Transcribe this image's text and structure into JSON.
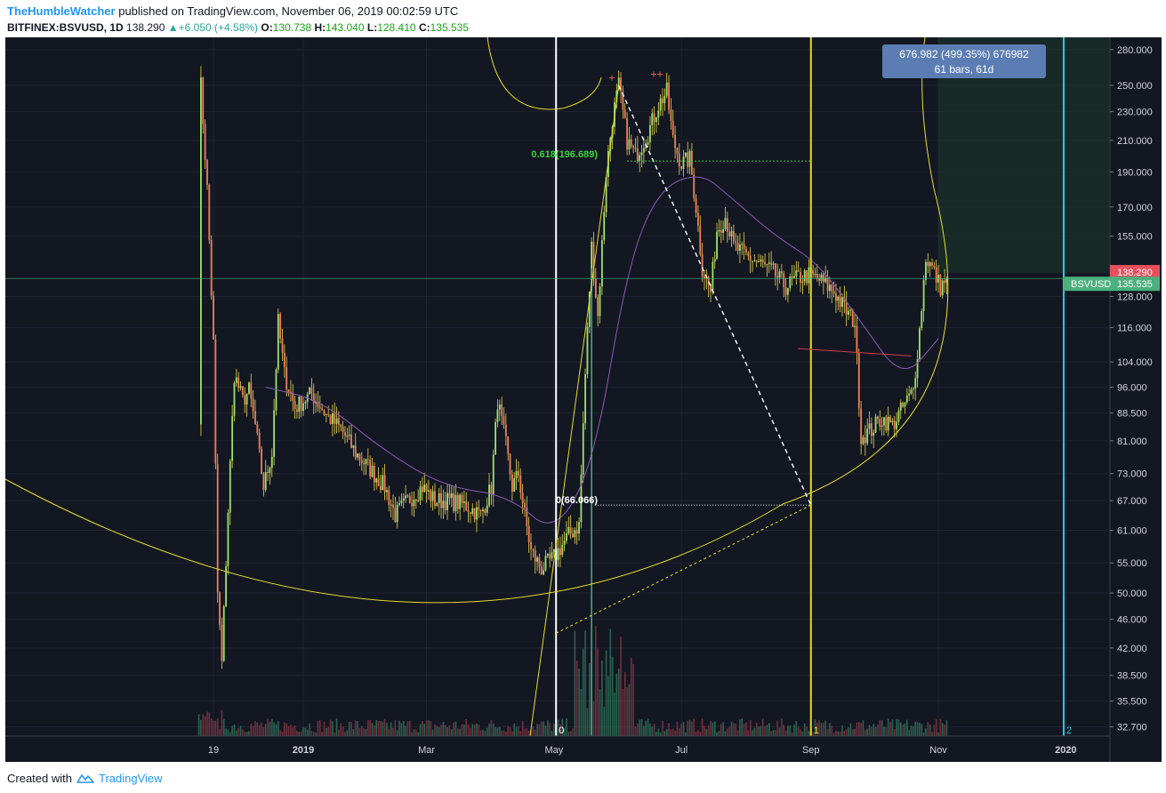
{
  "header": {
    "author": "TheHumbleWatcher",
    "published_text": "published on TradingView.com, November 06, 2019 00:02:59 UTC",
    "symbol": "BITFINEX:BSVUSD, 1D",
    "last": "138.290",
    "change": "▲+6.050 (+4.58%)",
    "o_label": "O:",
    "o": "130.738",
    "h_label": "H:",
    "h": "143.040",
    "l_label": "L:",
    "l": "128.410",
    "c_label": "C:",
    "c": "135.535"
  },
  "footer": {
    "created_with": "Created with",
    "brand": "TradingView",
    "logo_icon": "tradingview-cloud-icon"
  },
  "colors": {
    "background": "#131722",
    "candle_up": "#9be36b",
    "candle_down": "#f57e5a",
    "candle_wick": "#e8d84a",
    "yellow_lines": "#e6dc2b",
    "cyan_line": "#2fc6df",
    "ma_line": "#8e5ab5",
    "price_label_red": "#e84f5c",
    "price_label_green": "#4caf7e",
    "measure_box": "#5b7db3"
  },
  "chart_data": {
    "type": "candlestick",
    "scale": "log",
    "title": "",
    "ylim": [
      32.7,
      285
    ],
    "y_ticks": [
      "280.000",
      "250.000",
      "230.000",
      "210.000",
      "190.000",
      "170.000",
      "155.000",
      "128.000",
      "116.000",
      "104.000",
      "96.000",
      "88.500",
      "81.000",
      "73.000",
      "67.000",
      "61.000",
      "55.000",
      "50.000",
      "46.000",
      "42.000",
      "38.500",
      "35.500",
      "32.700"
    ],
    "x_ticks": [
      "19",
      "2019",
      "Mar",
      "May",
      "Jul",
      "Sep",
      "Nov",
      "2020"
    ],
    "price_path": [
      [
        "2018-11-12",
        88
      ],
      [
        "2018-11-13",
        250
      ],
      [
        "2018-11-16",
        180
      ],
      [
        "2018-11-19",
        110
      ],
      [
        "2018-11-21",
        50
      ],
      [
        "2018-11-23",
        40
      ],
      [
        "2018-11-26",
        65
      ],
      [
        "2018-11-29",
        100
      ],
      [
        "2018-12-03",
        92
      ],
      [
        "2018-12-06",
        95
      ],
      [
        "2018-12-09",
        85
      ],
      [
        "2018-12-13",
        70
      ],
      [
        "2018-12-17",
        78
      ],
      [
        "2018-12-20",
        118
      ],
      [
        "2018-12-23",
        100
      ],
      [
        "2018-12-28",
        90
      ],
      [
        "2019-01-05",
        94
      ],
      [
        "2019-01-12",
        88
      ],
      [
        "2019-01-19",
        84
      ],
      [
        "2019-01-26",
        78
      ],
      [
        "2019-02-02",
        74
      ],
      [
        "2019-02-09",
        70
      ],
      [
        "2019-02-14",
        64
      ],
      [
        "2019-02-20",
        67
      ],
      [
        "2019-02-27",
        70
      ],
      [
        "2019-03-05",
        67
      ],
      [
        "2019-03-12",
        67
      ],
      [
        "2019-03-20",
        66
      ],
      [
        "2019-03-27",
        64
      ],
      [
        "2019-04-01",
        70
      ],
      [
        "2019-04-04",
        92
      ],
      [
        "2019-04-08",
        80
      ],
      [
        "2019-04-11",
        70
      ],
      [
        "2019-04-14",
        73
      ],
      [
        "2019-04-17",
        64
      ],
      [
        "2019-04-20",
        57
      ],
      [
        "2019-04-25",
        54
      ],
      [
        "2019-05-01",
        56
      ],
      [
        "2019-05-08",
        60
      ],
      [
        "2019-05-13",
        62
      ],
      [
        "2019-05-16",
        100
      ],
      [
        "2019-05-19",
        150
      ],
      [
        "2019-05-22",
        120
      ],
      [
        "2019-05-26",
        190
      ],
      [
        "2019-05-29",
        225
      ],
      [
        "2019-06-01",
        250
      ],
      [
        "2019-06-05",
        210
      ],
      [
        "2019-06-09",
        200
      ],
      [
        "2019-06-15",
        215
      ],
      [
        "2019-06-20",
        235
      ],
      [
        "2019-06-24",
        245
      ],
      [
        "2019-06-27",
        210
      ],
      [
        "2019-07-01",
        195
      ],
      [
        "2019-07-05",
        198
      ],
      [
        "2019-07-08",
        170
      ],
      [
        "2019-07-11",
        140
      ],
      [
        "2019-07-15",
        130
      ],
      [
        "2019-07-18",
        158
      ],
      [
        "2019-07-22",
        165
      ],
      [
        "2019-07-26",
        150
      ],
      [
        "2019-08-02",
        145
      ],
      [
        "2019-08-08",
        142
      ],
      [
        "2019-08-14",
        138
      ],
      [
        "2019-08-20",
        132
      ],
      [
        "2019-08-26",
        136
      ],
      [
        "2019-08-31",
        137
      ],
      [
        "2019-09-05",
        135
      ],
      [
        "2019-09-12",
        130
      ],
      [
        "2019-09-18",
        122
      ],
      [
        "2019-09-22",
        118
      ],
      [
        "2019-09-25",
        82
      ],
      [
        "2019-09-30",
        84
      ],
      [
        "2019-10-05",
        87
      ],
      [
        "2019-10-10",
        85
      ],
      [
        "2019-10-15",
        90
      ],
      [
        "2019-10-20",
        95
      ],
      [
        "2019-10-23",
        115
      ],
      [
        "2019-10-26",
        145
      ],
      [
        "2019-10-29",
        140
      ],
      [
        "2019-11-02",
        132
      ],
      [
        "2019-11-05",
        135.535
      ]
    ],
    "ma_series": [
      [
        "2018-12-14",
        96
      ],
      [
        "2019-01-10",
        92
      ],
      [
        "2019-02-10",
        78
      ],
      [
        "2019-03-10",
        70
      ],
      [
        "2019-04-10",
        68
      ],
      [
        "2019-05-01",
        60
      ],
      [
        "2019-05-20",
        75
      ],
      [
        "2019-06-05",
        140
      ],
      [
        "2019-06-20",
        180
      ],
      [
        "2019-07-10",
        190
      ],
      [
        "2019-07-25",
        175
      ],
      [
        "2019-08-15",
        155
      ],
      [
        "2019-09-05",
        142
      ],
      [
        "2019-09-25",
        118
      ],
      [
        "2019-10-15",
        98
      ],
      [
        "2019-11-01",
        112
      ]
    ],
    "volume_bars_present": true,
    "annotations": [
      {
        "type": "label",
        "text": "0.618(196.689)",
        "date": "2019-05-29",
        "price": 196.689
      },
      {
        "type": "label",
        "text": "0(66.066)",
        "date": "2019-05-18",
        "price": 66.066
      },
      {
        "type": "label",
        "text": "0",
        "date": "2019-05-02"
      },
      {
        "type": "label",
        "text": "1",
        "date": "2019-09-01"
      },
      {
        "type": "label",
        "text": "2",
        "date": "2019-12-31"
      },
      {
        "type": "measure",
        "text_line1": "676.982 (499.35%) 676982",
        "text_line2": "61 bars, 61d"
      }
    ],
    "price_labels": [
      {
        "text": "138.290",
        "price": 138.29,
        "color": "red"
      },
      {
        "name": "BSVUSD",
        "text": "135.535",
        "price": 135.535,
        "color": "green"
      }
    ]
  }
}
